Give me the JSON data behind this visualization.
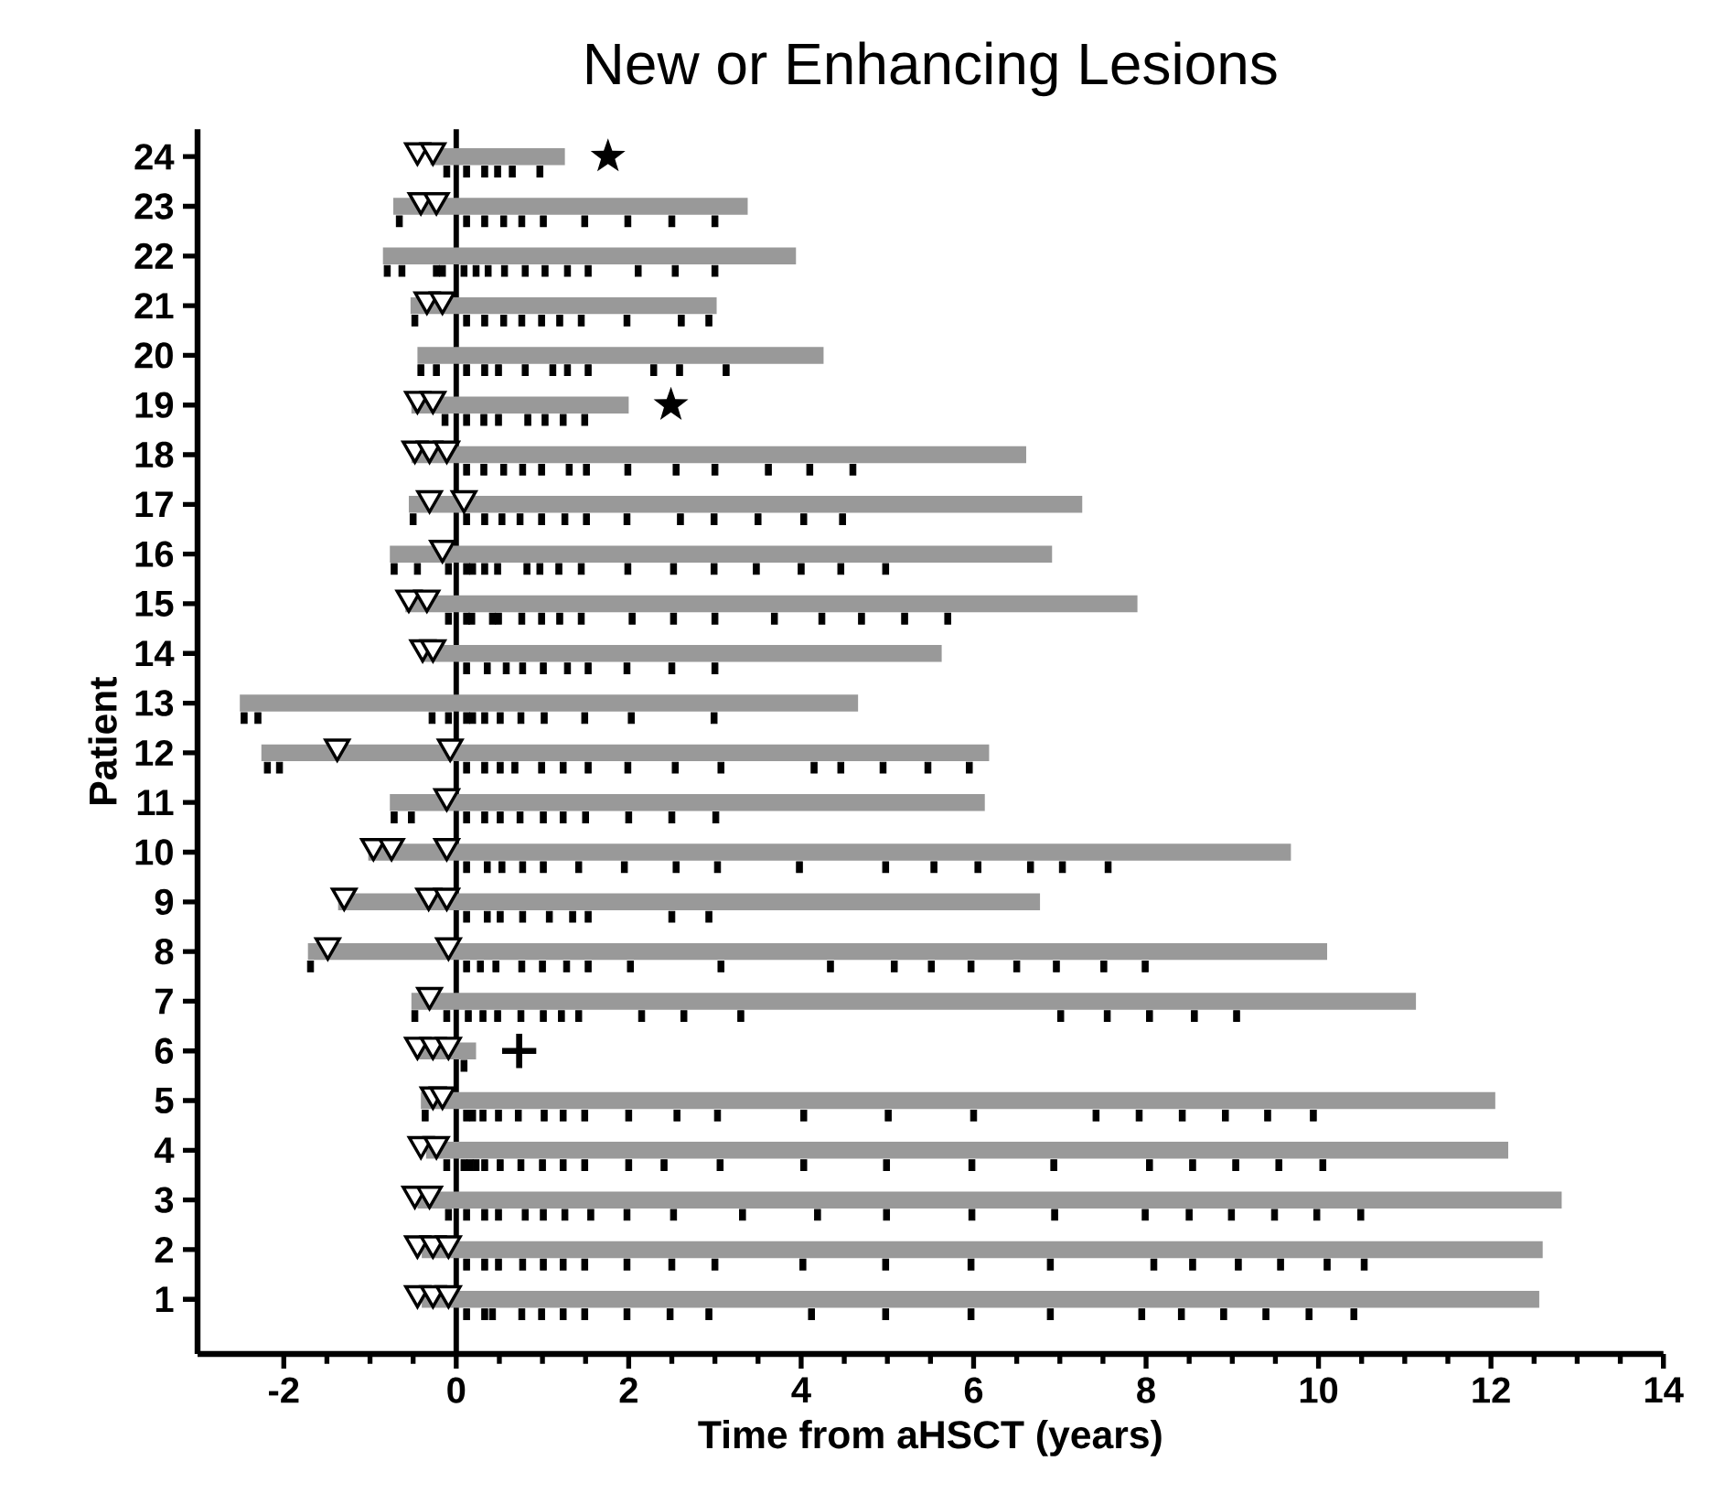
{
  "chart_data": {
    "type": "bar",
    "orientation": "horizontal",
    "title": "New or Enhancing Lesions",
    "xlabel": "Time from aHSCT (years)",
    "ylabel": "Patient",
    "categories": [
      "24",
      "23",
      "22",
      "21",
      "20",
      "19",
      "18",
      "17",
      "16",
      "15",
      "14",
      "13",
      "12",
      "11",
      "10",
      "9",
      "8",
      "7",
      "6",
      "5",
      "4",
      "3",
      "2",
      "1"
    ],
    "xlim": [
      -3,
      14
    ],
    "xticks": [
      -2,
      0,
      2,
      4,
      6,
      8,
      10,
      12,
      14
    ],
    "ref_lines": [
      {
        "axis": "x",
        "value": 0,
        "color": "#000000"
      }
    ],
    "series": [
      {
        "color": "#999999",
        "base": [
          -0.3,
          -0.73,
          -0.85,
          -0.53,
          -0.45,
          -0.52,
          -0.52,
          -0.55,
          -0.77,
          -0.59,
          -0.41,
          -2.51,
          -2.26,
          -0.77,
          -1.02,
          -1.37,
          -1.72,
          -0.52,
          -0.45,
          -0.41,
          -0.35,
          -0.45,
          -0.4,
          -0.4
        ],
        "values": [
          1.56,
          4.11,
          4.79,
          3.55,
          4.71,
          2.52,
          7.13,
          7.81,
          7.68,
          8.49,
          6.04,
          7.17,
          8.44,
          6.9,
          10.7,
          8.14,
          11.82,
          11.65,
          0.68,
          12.46,
          12.55,
          13.27,
          13.0,
          12.96
        ]
      },
      {
        "type": "scatter",
        "marker": "square",
        "color": "#000000",
        "x": [
          "24",
          "24",
          "24",
          "24",
          "24",
          "24",
          "23",
          "23",
          "23",
          "23",
          "23",
          "23",
          "23",
          "23",
          "23",
          "23",
          "22",
          "22",
          "22",
          "22",
          "22",
          "22",
          "22",
          "22",
          "22",
          "22",
          "22",
          "22",
          "22",
          "22",
          "22",
          "21",
          "21",
          "21",
          "21",
          "21",
          "21",
          "21",
          "21",
          "21",
          "21",
          "21",
          "20",
          "20",
          "20",
          "20",
          "20",
          "20",
          "20",
          "20",
          "20",
          "20",
          "20",
          "20",
          "19",
          "19",
          "19",
          "19",
          "19",
          "19",
          "19",
          "19",
          "18",
          "18",
          "18",
          "18",
          "18",
          "18",
          "18",
          "18",
          "18",
          "18",
          "18",
          "18",
          "18",
          "17",
          "17",
          "17",
          "17",
          "17",
          "17",
          "17",
          "17",
          "17",
          "17",
          "17",
          "17",
          "17",
          "17",
          "16",
          "16",
          "16",
          "16",
          "16",
          "16",
          "16",
          "16",
          "16",
          "16",
          "16",
          "16",
          "16",
          "16",
          "16",
          "16",
          "16",
          "16",
          "15",
          "15",
          "15",
          "15",
          "15",
          "15",
          "15",
          "15",
          "15",
          "15",
          "15",
          "15",
          "15",
          "15",
          "15",
          "15",
          "15",
          "14",
          "14",
          "14",
          "14",
          "14",
          "14",
          "14",
          "14",
          "14",
          "14",
          "13",
          "13",
          "13",
          "13",
          "13",
          "13",
          "13",
          "13",
          "13",
          "13",
          "13",
          "13",
          "13",
          "12",
          "12",
          "12",
          "12",
          "12",
          "12",
          "12",
          "12",
          "12",
          "12",
          "12",
          "12",
          "12",
          "12",
          "12",
          "12",
          "12",
          "11",
          "11",
          "11",
          "11",
          "11",
          "11",
          "11",
          "11",
          "11",
          "11",
          "11",
          "11",
          "10",
          "10",
          "10",
          "10",
          "10",
          "10",
          "10",
          "10",
          "10",
          "10",
          "10",
          "10",
          "10",
          "10",
          "10",
          "10",
          "9",
          "9",
          "9",
          "9",
          "9",
          "9",
          "9",
          "9",
          "9",
          "8",
          "8",
          "8",
          "8",
          "8",
          "8",
          "8",
          "8",
          "8",
          "8",
          "8",
          "8",
          "8",
          "8",
          "8",
          "8",
          "8",
          "8",
          "7",
          "7",
          "7",
          "7",
          "7",
          "7",
          "7",
          "7",
          "7",
          "7",
          "7",
          "7",
          "7",
          "7",
          "7",
          "7",
          "7",
          "6",
          "5",
          "5",
          "5",
          "5",
          "5",
          "5",
          "5",
          "5",
          "5",
          "5",
          "5",
          "5",
          "5",
          "5",
          "5",
          "5",
          "5",
          "5",
          "5",
          "5",
          "5",
          "4",
          "4",
          "4",
          "4",
          "4",
          "4",
          "4",
          "4",
          "4",
          "4",
          "4",
          "4",
          "4",
          "4",
          "4",
          "4",
          "4",
          "4",
          "4",
          "4",
          "4",
          "4",
          "3",
          "3",
          "3",
          "3",
          "3",
          "3",
          "3",
          "3",
          "3",
          "3",
          "3",
          "3",
          "3",
          "3",
          "3",
          "3",
          "3",
          "3",
          "3",
          "3",
          "3",
          "2",
          "2",
          "2",
          "2",
          "2",
          "2",
          "2",
          "2",
          "2",
          "2",
          "2",
          "2",
          "2",
          "2",
          "2",
          "2",
          "2",
          "2",
          "2",
          "2",
          "1",
          "1",
          "1",
          "1",
          "1",
          "1",
          "1",
          "1",
          "1",
          "1",
          "1",
          "1",
          "1",
          "1",
          "1",
          "1",
          "1",
          "1",
          "1",
          "1"
        ],
        "values": [
          -0.11,
          0.12,
          0.33,
          0.48,
          0.65,
          0.97,
          -0.66,
          0.12,
          0.33,
          0.55,
          0.76,
          1.01,
          1.49,
          1.99,
          2.5,
          3.0,
          -0.8,
          -0.63,
          -0.23,
          -0.16,
          0.09,
          0.23,
          0.37,
          0.56,
          0.8,
          1.03,
          1.29,
          1.53,
          2.11,
          2.54,
          3.0,
          -0.48,
          0.12,
          0.33,
          0.55,
          0.76,
          0.99,
          1.2,
          1.45,
          1.98,
          2.61,
          2.93,
          -0.41,
          -0.23,
          0.12,
          0.33,
          0.49,
          0.8,
          1.12,
          1.29,
          1.53,
          2.29,
          2.59,
          3.13,
          -0.13,
          0.12,
          0.32,
          0.49,
          0.83,
          1.03,
          1.24,
          1.49,
          0.12,
          0.32,
          0.55,
          0.77,
          0.99,
          1.31,
          1.51,
          1.99,
          2.55,
          3.0,
          3.62,
          4.1,
          4.6,
          -0.5,
          0.12,
          0.33,
          0.53,
          0.74,
          0.99,
          1.26,
          1.51,
          1.98,
          2.6,
          2.99,
          3.5,
          4.03,
          4.48,
          -0.72,
          -0.45,
          -0.09,
          0.12,
          0.19,
          0.33,
          0.48,
          0.82,
          0.97,
          1.19,
          1.45,
          1.99,
          2.52,
          2.99,
          3.48,
          4.0,
          4.46,
          4.98,
          -0.09,
          0.12,
          0.18,
          0.42,
          0.49,
          0.76,
          0.99,
          1.2,
          1.45,
          2.04,
          2.52,
          3.0,
          3.69,
          4.24,
          4.7,
          5.2,
          5.7,
          0.12,
          0.36,
          0.58,
          0.77,
          1.01,
          1.29,
          1.53,
          1.98,
          2.5,
          3.0,
          -2.46,
          -2.3,
          -0.28,
          -0.09,
          0.12,
          0.19,
          0.33,
          0.51,
          0.75,
          1.02,
          1.49,
          2.03,
          2.99,
          -2.19,
          -2.05,
          0.12,
          0.33,
          0.51,
          0.68,
          0.99,
          1.24,
          1.53,
          1.99,
          2.54,
          3.07,
          4.15,
          4.46,
          4.95,
          5.47,
          5.95,
          -0.72,
          -0.52,
          0.12,
          0.33,
          0.51,
          0.74,
          1.01,
          1.24,
          1.5,
          2.0,
          2.5,
          3.01,
          0.12,
          0.36,
          0.53,
          0.77,
          1.01,
          1.42,
          1.95,
          2.55,
          3.03,
          3.98,
          4.98,
          5.54,
          6.05,
          6.66,
          7.03,
          7.56,
          0.12,
          0.36,
          0.51,
          0.77,
          1.08,
          1.35,
          1.53,
          2.5,
          2.93,
          -1.69,
          0.12,
          0.28,
          0.46,
          0.76,
          1.0,
          1.28,
          1.53,
          2.02,
          3.07,
          4.34,
          5.08,
          5.51,
          5.97,
          6.5,
          6.96,
          7.51,
          7.99,
          -0.48,
          -0.11,
          0.14,
          0.31,
          0.48,
          0.75,
          1.01,
          1.22,
          1.42,
          2.15,
          2.64,
          3.3,
          7.01,
          7.55,
          8.04,
          8.56,
          9.05,
          0.09,
          -0.36,
          0.12,
          0.19,
          0.31,
          0.49,
          0.72,
          1.02,
          1.24,
          1.49,
          2.0,
          2.56,
          3.03,
          4.03,
          5.01,
          6.0,
          7.42,
          7.92,
          8.42,
          8.92,
          9.41,
          9.94,
          -0.11,
          0.09,
          0.16,
          0.23,
          0.33,
          0.51,
          0.75,
          1.0,
          1.24,
          1.49,
          2.0,
          2.41,
          3.06,
          4.03,
          4.99,
          5.98,
          6.93,
          8.04,
          8.54,
          9.04,
          9.54,
          10.05,
          -0.09,
          0.12,
          0.33,
          0.49,
          0.8,
          1.01,
          1.26,
          1.56,
          1.98,
          2.52,
          3.32,
          4.19,
          4.99,
          5.98,
          6.94,
          7.99,
          8.5,
          8.99,
          9.49,
          9.98,
          10.49,
          0.12,
          0.33,
          0.49,
          0.77,
          1.01,
          1.24,
          1.49,
          1.98,
          2.5,
          3.0,
          4.02,
          4.98,
          5.97,
          6.89,
          8.09,
          8.54,
          9.07,
          9.56,
          10.1,
          10.53,
          0.12,
          0.33,
          0.42,
          0.76,
          0.99,
          1.24,
          1.49,
          1.98,
          2.48,
          2.93,
          4.12,
          4.98,
          5.97,
          6.89,
          7.95,
          8.41,
          8.9,
          9.39,
          9.89,
          10.41
        ]
      },
      {
        "type": "scatter",
        "marker": "triangle",
        "color": "#000000",
        "x": [
          "24",
          "24",
          "23",
          "23",
          "21",
          "21",
          "19",
          "19",
          "18",
          "18",
          "18",
          "17",
          "17",
          "16",
          "15",
          "15",
          "14",
          "14",
          "12",
          "12",
          "11",
          "10",
          "10",
          "10",
          "9",
          "9",
          "9",
          "8",
          "8",
          "7",
          "6",
          "6",
          "6",
          "5",
          "5",
          "4",
          "4",
          "3",
          "3",
          "2",
          "2",
          "2",
          "1",
          "1",
          "1"
        ],
        "values": [
          -0.45,
          -0.27,
          -0.41,
          -0.23,
          -0.34,
          -0.16,
          -0.45,
          -0.27,
          -0.48,
          -0.31,
          -0.11,
          -0.31,
          0.09,
          -0.16,
          -0.55,
          -0.34,
          -0.39,
          -0.27,
          -1.38,
          -0.07,
          -0.11,
          -0.96,
          -0.75,
          -0.11,
          -1.3,
          -0.32,
          -0.11,
          -1.49,
          -0.09,
          -0.31,
          -0.45,
          -0.27,
          -0.09,
          -0.27,
          -0.16,
          -0.41,
          -0.23,
          -0.48,
          -0.31,
          -0.45,
          -0.27,
          -0.09,
          -0.45,
          -0.27,
          -0.09
        ]
      },
      {
        "type": "scatter",
        "marker": "star",
        "color": "#000000",
        "x": [
          "24",
          "19"
        ],
        "values": [
          1.76,
          2.49
        ]
      },
      {
        "type": "scatter",
        "marker": "cross",
        "color": "#000000",
        "x": [
          "6"
        ],
        "values": [
          0.73
        ]
      }
    ]
  }
}
